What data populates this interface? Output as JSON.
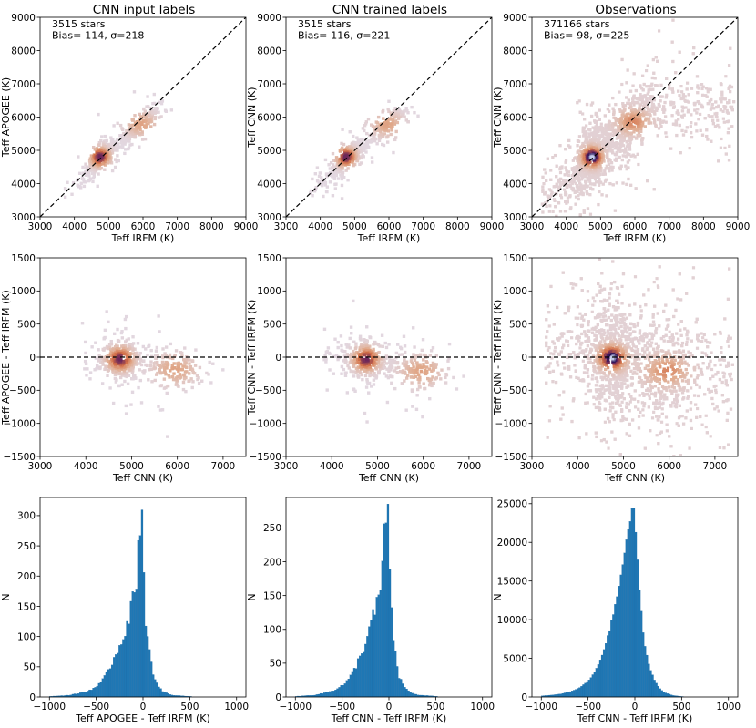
{
  "figure": {
    "column_titles": [
      "CNN input labels",
      "CNN trained labels",
      "Observations"
    ]
  },
  "chart_data": [
    {
      "type": "heatmap",
      "id": "r1c1",
      "title": "CNN input labels",
      "annotations": [
        "3515 stars",
        "Bias=-114, σ=218"
      ],
      "xlabel": "Teff IRFM (K)",
      "ylabel": "Teff APOGEE (K)",
      "xlim": [
        3000,
        9000
      ],
      "ylim": [
        3000,
        9000
      ],
      "xticks": [
        3000,
        4000,
        5000,
        6000,
        7000,
        8000,
        9000
      ],
      "yticks": [
        3000,
        4000,
        5000,
        6000,
        7000,
        8000,
        9000
      ],
      "reference_line": "y = x (dashed)",
      "density_ridge": [
        [
          3700,
          3800
        ],
        [
          4200,
          4150
        ],
        [
          4750,
          4800
        ],
        [
          5200,
          5150
        ],
        [
          5800,
          5650
        ],
        [
          6400,
          6200
        ]
      ]
    },
    {
      "type": "heatmap",
      "id": "r1c2",
      "title": "CNN trained labels",
      "annotations": [
        "3515 stars",
        "Bias=-116, σ=221"
      ],
      "xlabel": "Teff IRFM (K)",
      "ylabel": "Teff CNN (K)",
      "xlim": [
        3000,
        9000
      ],
      "ylim": [
        3000,
        9000
      ],
      "xticks": [
        3000,
        4000,
        5000,
        6000,
        7000,
        8000,
        9000
      ],
      "yticks": [
        3000,
        4000,
        5000,
        6000,
        7000,
        8000,
        9000
      ],
      "reference_line": "y = x (dashed)",
      "density_ridge": [
        [
          3700,
          3800
        ],
        [
          4200,
          4100
        ],
        [
          4750,
          4800
        ],
        [
          5200,
          5100
        ],
        [
          5800,
          5650
        ],
        [
          6400,
          6150
        ]
      ]
    },
    {
      "type": "heatmap",
      "id": "r1c3",
      "title": "Observations",
      "annotations": [
        "371166 stars",
        "Bias=-98, σ=225"
      ],
      "xlabel": "Teff IRFM (K)",
      "ylabel": "Teff CNN (K)",
      "xlim": [
        3000,
        9000
      ],
      "ylim": [
        3000,
        9000
      ],
      "xticks": [
        3000,
        4000,
        5000,
        6000,
        7000,
        8000,
        9000
      ],
      "yticks": [
        3000,
        4000,
        5000,
        6000,
        7000,
        8000,
        9000
      ],
      "reference_line": "y = x (dashed)",
      "density_ridge": [
        [
          3600,
          3700
        ],
        [
          4200,
          4150
        ],
        [
          4750,
          4800
        ],
        [
          5300,
          5250
        ],
        [
          6000,
          5900
        ],
        [
          6500,
          6300
        ]
      ]
    },
    {
      "type": "heatmap",
      "id": "r2c1",
      "xlabel": "Teff CNN (K)",
      "ylabel": "Teff APOGEE - Teff IRFM (K)",
      "xlim": [
        3000,
        7500
      ],
      "ylim": [
        -1500,
        1500
      ],
      "xticks": [
        3000,
        4000,
        5000,
        6000,
        7000
      ],
      "yticks": [
        -1500,
        -1000,
        -500,
        0,
        500,
        1000,
        1500
      ],
      "reference_line": "y = 0 (dashed)",
      "density_ridge": [
        [
          3900,
          50
        ],
        [
          4300,
          -10
        ],
        [
          4750,
          -30
        ],
        [
          5200,
          -60
        ],
        [
          5800,
          -180
        ],
        [
          6300,
          -200
        ]
      ]
    },
    {
      "type": "heatmap",
      "id": "r2c2",
      "xlabel": "Teff CNN (K)",
      "ylabel": "Teff CNN - Teff IRFM (K)",
      "xlim": [
        3000,
        7500
      ],
      "ylim": [
        -1500,
        1500
      ],
      "xticks": [
        3000,
        4000,
        5000,
        6000,
        7000
      ],
      "yticks": [
        -1500,
        -1000,
        -500,
        0,
        500,
        1000,
        1500
      ],
      "reference_line": "y = 0 (dashed)",
      "density_ridge": [
        [
          3800,
          40
        ],
        [
          4300,
          -20
        ],
        [
          4750,
          -30
        ],
        [
          5200,
          -60
        ],
        [
          5800,
          -200
        ],
        [
          6300,
          -230
        ]
      ]
    },
    {
      "type": "heatmap",
      "id": "r2c3",
      "xlabel": "Teff CNN (K)",
      "ylabel": "Teff CNN - Teff IRFM (K)",
      "xlim": [
        3000,
        7500
      ],
      "ylim": [
        -1500,
        1500
      ],
      "xticks": [
        3000,
        4000,
        5000,
        6000,
        7000
      ],
      "yticks": [
        -1500,
        -1000,
        -500,
        0,
        500,
        1000,
        1500
      ],
      "reference_line": "y = 0 (dashed)",
      "density_ridge": [
        [
          3900,
          120
        ],
        [
          4300,
          20
        ],
        [
          4750,
          -10
        ],
        [
          5300,
          -80
        ],
        [
          5900,
          -200
        ],
        [
          6400,
          -260
        ]
      ]
    },
    {
      "type": "bar",
      "id": "r3c1",
      "xlabel": "Teff APOGEE - Teff IRFM (K)",
      "ylabel": "N",
      "xlim": [
        -1100,
        1100
      ],
      "ylim": [
        0,
        330
      ],
      "xticks": [
        -1000,
        -500,
        0,
        500,
        1000
      ],
      "yticks": [
        0,
        50,
        100,
        150,
        200,
        250,
        300
      ],
      "bin_width": 20,
      "x": [
        -1000,
        -900,
        -800,
        -700,
        -600,
        -500,
        -450,
        -400,
        -350,
        -300,
        -250,
        -200,
        -150,
        -100,
        -80,
        -60,
        -40,
        -20,
        0,
        20,
        40,
        60,
        80,
        100,
        150,
        200,
        250,
        300,
        400,
        500
      ],
      "values": [
        1,
        2,
        3,
        6,
        10,
        18,
        25,
        38,
        55,
        70,
        90,
        110,
        140,
        170,
        195,
        250,
        300,
        315,
        200,
        130,
        100,
        75,
        55,
        35,
        18,
        10,
        6,
        3,
        2,
        1
      ]
    },
    {
      "type": "bar",
      "id": "r3c2",
      "xlabel": "Teff CNN - Teff IRFM (K)",
      "ylabel": "N",
      "xlim": [
        -1100,
        1100
      ],
      "ylim": [
        0,
        295
      ],
      "xticks": [
        -1000,
        -500,
        0,
        500,
        1000
      ],
      "yticks": [
        0,
        50,
        100,
        150,
        200,
        250
      ],
      "bin_width": 20,
      "x": [
        -1000,
        -900,
        -800,
        -700,
        -600,
        -500,
        -450,
        -400,
        -350,
        -300,
        -250,
        -200,
        -150,
        -100,
        -80,
        -60,
        -40,
        -20,
        0,
        20,
        40,
        60,
        80,
        100,
        150,
        200,
        250,
        300,
        400,
        500
      ],
      "values": [
        1,
        2,
        3,
        6,
        10,
        18,
        24,
        35,
        50,
        65,
        85,
        110,
        130,
        160,
        190,
        240,
        275,
        260,
        180,
        120,
        90,
        65,
        45,
        30,
        16,
        9,
        5,
        3,
        2,
        1
      ]
    },
    {
      "type": "bar",
      "id": "r3c3",
      "xlabel": "Teff CNN - Teff IRFM (K)",
      "ylabel": "N",
      "xlim": [
        -1100,
        1100
      ],
      "ylim": [
        0,
        25800
      ],
      "xticks": [
        -1000,
        -500,
        0,
        500,
        1000
      ],
      "yticks": [
        0,
        5000,
        10000,
        15000,
        20000,
        25000
      ],
      "bin_width": 20,
      "x": [
        -1000,
        -900,
        -800,
        -700,
        -600,
        -500,
        -450,
        -400,
        -350,
        -300,
        -250,
        -200,
        -150,
        -100,
        -80,
        -60,
        -40,
        -20,
        0,
        20,
        40,
        60,
        80,
        100,
        150,
        200,
        250,
        300,
        400,
        500
      ],
      "values": [
        150,
        250,
        400,
        700,
        1200,
        2200,
        3000,
        4200,
        5800,
        7800,
        10200,
        13000,
        16500,
        20000,
        21500,
        23000,
        24500,
        24000,
        21000,
        17500,
        14000,
        11000,
        8500,
        6500,
        3800,
        2200,
        1200,
        600,
        200,
        60
      ]
    }
  ]
}
